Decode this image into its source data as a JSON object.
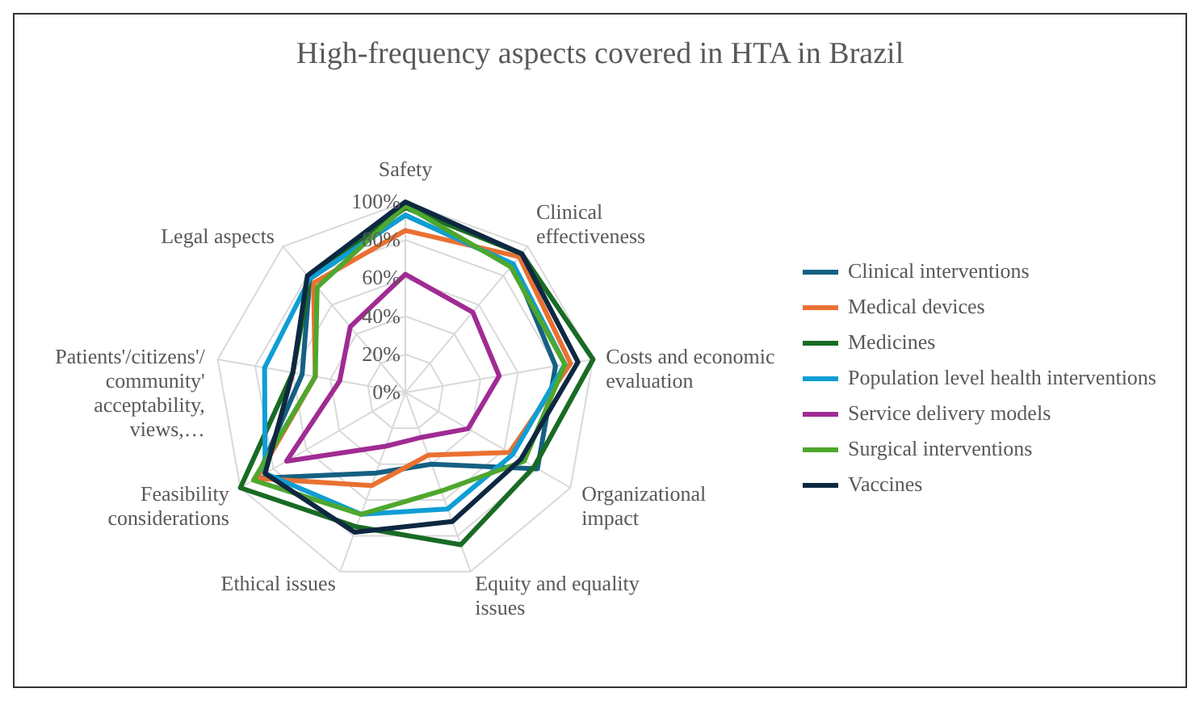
{
  "chart_data": {
    "type": "radar",
    "title": "High-frequency aspects covered in HTA in Brazil",
    "categories": [
      "Safety",
      "Clinical effectiveness",
      "Costs and economic evaluation",
      "Organizational impact",
      "Equity and equality issues",
      "Ethical issues",
      "Feasibility considerations",
      "Patients'/citizens'/community' acceptability, views,…",
      "Legal aspects"
    ],
    "series": [
      {
        "name": "Clinical interventions",
        "color": "#156082",
        "values": [
          93,
          88,
          80,
          80,
          40,
          45,
          90,
          55,
          78
        ]
      },
      {
        "name": "Medical devices",
        "color": "#e97132",
        "values": [
          85,
          93,
          88,
          63,
          35,
          52,
          90,
          48,
          75
        ]
      },
      {
        "name": "Medicines",
        "color": "#196b24",
        "values": [
          97,
          95,
          100,
          78,
          85,
          75,
          100,
          60,
          78
        ]
      },
      {
        "name": "Population level health interventions",
        "color": "#0f9ed5",
        "values": [
          93,
          88,
          85,
          65,
          65,
          68,
          85,
          75,
          78
        ]
      },
      {
        "name": "Service delivery models",
        "color": "#a02b93",
        "values": [
          62,
          55,
          50,
          38,
          25,
          30,
          72,
          35,
          45
        ]
      },
      {
        "name": "Surgical interventions",
        "color": "#4ea72e",
        "values": [
          98,
          86,
          85,
          72,
          55,
          68,
          92,
          48,
          72
        ]
      },
      {
        "name": "Vaccines",
        "color": "#0e2841",
        "values": [
          100,
          95,
          92,
          70,
          72,
          78,
          85,
          60,
          80
        ]
      }
    ],
    "ylim": [
      0,
      100
    ],
    "yticks": [
      {
        "value": 0,
        "label": "0%"
      },
      {
        "value": 20,
        "label": "20%"
      },
      {
        "value": 40,
        "label": "40%"
      },
      {
        "value": 60,
        "label": "60%"
      },
      {
        "value": 80,
        "label": "80%"
      },
      {
        "value": 100,
        "label": "100%"
      }
    ],
    "grid": true,
    "legend": "right",
    "marker": "none"
  }
}
